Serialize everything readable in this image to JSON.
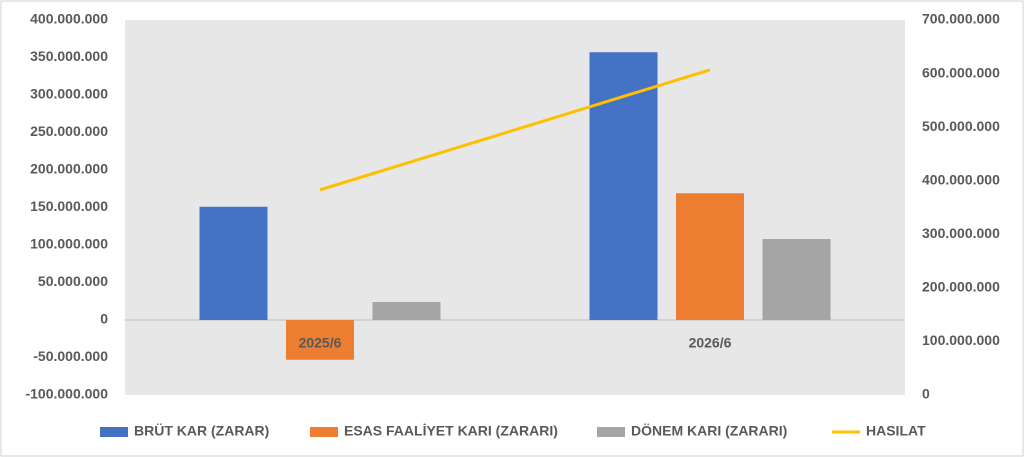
{
  "chart_data": {
    "type": "bar",
    "categories": [
      "2025/6",
      "2026/6"
    ],
    "series": [
      {
        "name": "BRÜT KAR (ZARAR)",
        "color": "#4472c4",
        "values": [
          151000000,
          357000000
        ]
      },
      {
        "name": "ESAS FAALİYET KARI (ZARARI)",
        "color": "#ed7d31",
        "values": [
          -53000000,
          169000000
        ]
      },
      {
        "name": "DÖNEM KARI (ZARARI)",
        "color": "#a5a5a5",
        "values": [
          24000000,
          108000000
        ]
      },
      {
        "name": "HASILAT",
        "color": "#ffc000",
        "type": "line",
        "axis": "y2",
        "values": [
          383000000,
          607000000
        ]
      }
    ],
    "ylim": [
      -100000000,
      400000000
    ],
    "yticks": [
      {
        "value": -100000000,
        "label": "-100.000.000"
      },
      {
        "value": -50000000,
        "label": "-50.000.000"
      },
      0,
      {
        "value": 50000000,
        "label": "50.000.000"
      },
      {
        "value": 100000000,
        "label": "100.000.000"
      },
      {
        "value": 150000000,
        "label": "150.000.000"
      },
      {
        "value": 200000000,
        "label": "200.000.000"
      },
      {
        "value": 250000000,
        "label": "250.000.000"
      },
      {
        "value": 300000000,
        "label": "300.000.000"
      },
      {
        "value": 350000000,
        "label": "350.000.000"
      },
      {
        "value": 400000000,
        "label": "400.000.000"
      }
    ],
    "y2lim": [
      0,
      700000000
    ],
    "y2ticks": [
      0,
      {
        "value": 100000000,
        "label": "100.000.000"
      },
      {
        "value": 200000000,
        "label": "200.000.000"
      },
      {
        "value": 300000000,
        "label": "300.000.000"
      },
      {
        "value": 400000000,
        "label": "400.000.000"
      },
      {
        "value": 500000000,
        "label": "500.000.000"
      },
      {
        "value": 600000000,
        "label": "600.000.000"
      },
      {
        "value": 700000000,
        "label": "700.000.000"
      }
    ],
    "legend": "bottom"
  }
}
